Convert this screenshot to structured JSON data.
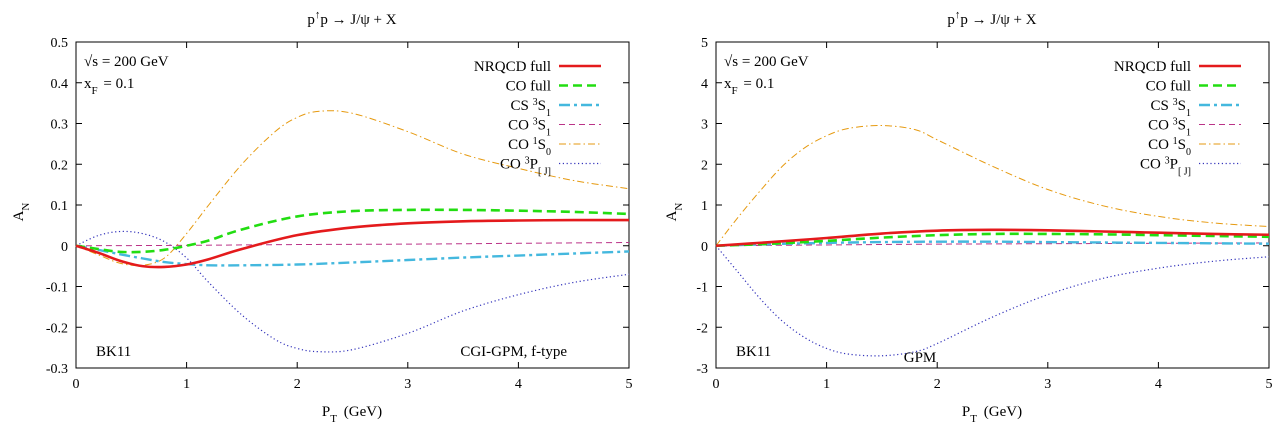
{
  "chart_data": [
    {
      "type": "line",
      "title": "p↑p → J/ψ + X",
      "xlabel": "P_T (GeV)",
      "ylabel": "A_N",
      "xlim": [
        0,
        5
      ],
      "ylim": [
        -0.3,
        0.5
      ],
      "xticks": [
        "0",
        "1",
        "2",
        "3",
        "4",
        "5"
      ],
      "yticks": [
        "-0.3",
        "-0.2",
        "-0.1",
        "0",
        "0.1",
        "0.2",
        "0.3",
        "0.4",
        "0.5"
      ],
      "annotations": {
        "sqrt_s": "√s = 200 GeV",
        "xf": "x_F = 0.1",
        "bottom_left": "BK11",
        "bottom_right": "CGI-GPM, f-type"
      },
      "legend_position": "top-right",
      "grid": false,
      "series": [
        {
          "name": "NRQCD full",
          "color": "#e41a1c",
          "style": "solid",
          "width": 2.6,
          "x": [
            0,
            0.2,
            0.4,
            0.6,
            0.8,
            1.0,
            1.2,
            1.5,
            2.0,
            2.5,
            3.0,
            3.5,
            4.0,
            4.5,
            5.0
          ],
          "y": [
            0,
            -0.017,
            -0.037,
            -0.05,
            -0.052,
            -0.046,
            -0.033,
            -0.008,
            0.026,
            0.045,
            0.055,
            0.06,
            0.062,
            0.063,
            0.063
          ]
        },
        {
          "name": "CO full",
          "color": "#22dd11",
          "style": "dashed",
          "width": 2.6,
          "x": [
            0,
            0.2,
            0.4,
            0.6,
            0.8,
            1.0,
            1.2,
            1.5,
            2.0,
            2.5,
            3.0,
            3.5,
            4.0,
            4.5,
            5.0
          ],
          "y": [
            0,
            -0.008,
            -0.015,
            -0.015,
            -0.01,
            0.0,
            0.013,
            0.04,
            0.072,
            0.085,
            0.088,
            0.088,
            0.086,
            0.083,
            0.078
          ]
        },
        {
          "name": "CS ³S₁",
          "color": "#44b8de",
          "style": "dashdot",
          "width": 2.4,
          "x": [
            0,
            0.2,
            0.4,
            0.6,
            0.8,
            1.0,
            1.2,
            1.5,
            2.0,
            2.5,
            3.0,
            3.5,
            4.0,
            4.5,
            5.0
          ],
          "y": [
            0,
            -0.01,
            -0.021,
            -0.031,
            -0.04,
            -0.045,
            -0.048,
            -0.048,
            -0.046,
            -0.041,
            -0.035,
            -0.029,
            -0.024,
            -0.019,
            -0.014
          ]
        },
        {
          "name": "CO ³S₁",
          "color": "#bb3388",
          "style": "dashed-fine",
          "width": 1,
          "x": [
            0,
            1,
            2,
            3,
            4,
            5
          ],
          "y": [
            0,
            0.001,
            0.003,
            0.004,
            0.006,
            0.008
          ]
        },
        {
          "name": "CO ¹S₀",
          "color": "#e69a10",
          "style": "dashdot-fine",
          "width": 1,
          "x": [
            0,
            0.2,
            0.4,
            0.6,
            0.8,
            1.0,
            1.2,
            1.5,
            1.8,
            2.0,
            2.2,
            2.5,
            3.0,
            3.5,
            4.0,
            4.5,
            5.0
          ],
          "y": [
            0,
            -0.022,
            -0.043,
            -0.048,
            -0.03,
            0.03,
            0.1,
            0.2,
            0.28,
            0.315,
            0.33,
            0.325,
            0.28,
            0.225,
            0.19,
            0.16,
            0.14
          ]
        },
        {
          "name": "CO ³P_[J]",
          "color": "#3333bb",
          "style": "dotted",
          "width": 1.2,
          "x": [
            0,
            0.2,
            0.4,
            0.6,
            0.8,
            1.0,
            1.2,
            1.5,
            1.8,
            2.0,
            2.2,
            2.5,
            3.0,
            3.5,
            4.0,
            4.5,
            5.0
          ],
          "y": [
            0,
            0.025,
            0.035,
            0.03,
            0.01,
            -0.03,
            -0.09,
            -0.17,
            -0.23,
            -0.252,
            -0.26,
            -0.255,
            -0.215,
            -0.16,
            -0.12,
            -0.09,
            -0.07
          ]
        }
      ]
    },
    {
      "type": "line",
      "title": "p↑p → J/ψ + X",
      "xlabel": "P_T (GeV)",
      "ylabel": "A_N",
      "xlim": [
        0,
        5
      ],
      "ylim": [
        -3,
        5
      ],
      "xticks": [
        "0",
        "1",
        "2",
        "3",
        "4",
        "5"
      ],
      "yticks": [
        "-3",
        "-2",
        "-1",
        "0",
        "1",
        "2",
        "3",
        "4",
        "5"
      ],
      "annotations": {
        "sqrt_s": "√s = 200 GeV",
        "xf": "x_F = 0.1",
        "bottom_left": "BK11",
        "bottom_right": "GPM"
      },
      "legend_position": "top-right",
      "grid": false,
      "series": [
        {
          "name": "NRQCD full",
          "color": "#e41a1c",
          "style": "solid",
          "width": 2.6,
          "x": [
            0,
            0.5,
            1.0,
            1.5,
            2.0,
            2.5,
            3.0,
            3.5,
            4.0,
            4.5,
            5.0
          ],
          "y": [
            0,
            0.09,
            0.19,
            0.3,
            0.37,
            0.39,
            0.38,
            0.35,
            0.32,
            0.29,
            0.27
          ]
        },
        {
          "name": "CO full",
          "color": "#22dd11",
          "style": "dashed",
          "width": 2.6,
          "x": [
            0,
            0.5,
            1.0,
            1.5,
            2.0,
            2.5,
            3.0,
            3.5,
            4.0,
            4.5,
            5.0
          ],
          "y": [
            0,
            0.05,
            0.12,
            0.2,
            0.26,
            0.29,
            0.29,
            0.28,
            0.26,
            0.24,
            0.22
          ]
        },
        {
          "name": "CS ³S₁",
          "color": "#44b8de",
          "style": "dashdot",
          "width": 2.4,
          "x": [
            0,
            0.5,
            1.0,
            1.5,
            2.0,
            2.5,
            3.0,
            3.5,
            4.0,
            4.5,
            5.0
          ],
          "y": [
            0,
            0.04,
            0.07,
            0.09,
            0.1,
            0.1,
            0.09,
            0.08,
            0.07,
            0.06,
            0.05
          ]
        },
        {
          "name": "CO ³S₁",
          "color": "#bb3388",
          "style": "dashed-fine",
          "width": 1,
          "x": [
            0,
            1,
            2,
            3,
            4,
            5
          ],
          "y": [
            0,
            0.02,
            0.04,
            0.05,
            0.06,
            0.07
          ]
        },
        {
          "name": "CO ¹S₀",
          "color": "#e69a10",
          "style": "dashdot-fine",
          "width": 1,
          "x": [
            0,
            0.2,
            0.4,
            0.6,
            0.8,
            1.0,
            1.2,
            1.5,
            1.8,
            2.0,
            2.5,
            3.0,
            3.5,
            4.0,
            4.5,
            5.0
          ],
          "y": [
            0,
            0.7,
            1.35,
            1.95,
            2.4,
            2.7,
            2.88,
            2.95,
            2.85,
            2.6,
            1.95,
            1.38,
            0.98,
            0.72,
            0.56,
            0.47
          ]
        },
        {
          "name": "CO ³P_[J]",
          "color": "#3333bb",
          "style": "dotted",
          "width": 1.2,
          "x": [
            0,
            0.2,
            0.4,
            0.6,
            0.8,
            1.0,
            1.2,
            1.5,
            1.8,
            2.0,
            2.5,
            3.0,
            3.5,
            4.0,
            4.5,
            5.0
          ],
          "y": [
            0,
            -0.65,
            -1.3,
            -1.85,
            -2.25,
            -2.52,
            -2.66,
            -2.7,
            -2.6,
            -2.4,
            -1.75,
            -1.2,
            -0.8,
            -0.55,
            -0.38,
            -0.27
          ]
        }
      ]
    }
  ]
}
